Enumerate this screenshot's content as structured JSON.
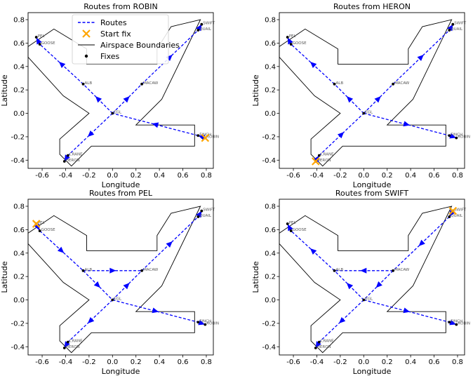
{
  "chart_data": {
    "type": "line",
    "xlabel": "Longitude",
    "ylabel": "Latitude",
    "xlim": [
      -0.72,
      0.86
    ],
    "ylim": [
      -0.47,
      0.86
    ],
    "x_ticks": [
      "-0.6",
      "-0.4",
      "-0.2",
      "0.0",
      "0.2",
      "0.4",
      "0.6",
      "0.8"
    ],
    "x_tick_values": [
      -0.6,
      -0.4,
      -0.2,
      0.0,
      0.2,
      0.4,
      0.6,
      0.8
    ],
    "y_ticks": [
      "-0.4",
      "-0.2",
      "0.0",
      "0.2",
      "0.4",
      "0.6",
      "0.8"
    ],
    "y_tick_values": [
      -0.4,
      -0.2,
      0.0,
      0.2,
      0.4,
      0.6,
      0.8
    ],
    "colors": {
      "route": "#0000ff",
      "start": "#ffa500",
      "boundary": "#000000",
      "fix": "#000000"
    },
    "legend": {
      "routes": "Routes",
      "start": "Start fix",
      "boundaries": "Airspace Boundaries",
      "fixes": "Fixes"
    },
    "fixes": [
      {
        "name": "PEL",
        "lon": -0.65,
        "lat": 0.65
      },
      {
        "name": "GOOSE",
        "lon": -0.62,
        "lat": 0.59
      },
      {
        "name": "SWIFT",
        "lon": 0.76,
        "lat": 0.76
      },
      {
        "name": "QUAIL",
        "lon": 0.73,
        "lat": 0.71
      },
      {
        "name": "ALB",
        "lon": -0.25,
        "lat": 0.25
      },
      {
        "name": "MACAW",
        "lon": 0.25,
        "lat": 0.25
      },
      {
        "name": "EGL",
        "lon": 0.0,
        "lat": 0.0
      },
      {
        "name": "FINCH",
        "lon": 0.73,
        "lat": -0.19
      },
      {
        "name": "ROBIN",
        "lon": 0.79,
        "lat": -0.21
      },
      {
        "name": "CRANE",
        "lon": -0.38,
        "lat": -0.36
      },
      {
        "name": "HERON",
        "lon": -0.41,
        "lat": -0.41
      }
    ],
    "boundary": [
      [
        -0.35,
        -0.45
      ],
      [
        -0.18,
        -0.28
      ],
      [
        -0.18,
        -0.28
      ],
      [
        0.18,
        -0.28
      ],
      [
        0.18,
        -0.28
      ],
      [
        0.7,
        -0.28
      ],
      [
        0.7,
        -0.28
      ],
      [
        0.7,
        -0.1
      ],
      [
        0.45,
        -0.1
      ],
      [
        0.2,
        -0.1
      ],
      [
        0.42,
        0.12
      ],
      [
        0.75,
        0.8
      ],
      [
        0.5,
        0.74
      ],
      [
        0.38,
        0.55
      ],
      [
        0.38,
        0.42
      ],
      [
        -0.22,
        0.42
      ],
      [
        -0.22,
        0.55
      ],
      [
        -0.5,
        0.72
      ],
      [
        -0.72,
        0.57
      ],
      [
        -0.72,
        0.48
      ],
      [
        -0.42,
        0.15
      ],
      [
        -0.2,
        0.0
      ],
      [
        -0.45,
        -0.22
      ],
      [
        -0.45,
        -0.35
      ]
    ],
    "panels": [
      {
        "title": "Routes from ROBIN",
        "start": "ROBIN",
        "show_legend": true,
        "routes": [
          [
            "ROBIN",
            "FINCH",
            "EGL",
            "CRANE",
            "HERON"
          ],
          [
            "ROBIN",
            "FINCH",
            "EGL",
            "ALB",
            "GOOSE",
            "PEL"
          ],
          [
            "ROBIN",
            "FINCH",
            "EGL",
            "MACAW",
            "QUAIL",
            "SWIFT"
          ]
        ]
      },
      {
        "title": "Routes from HERON",
        "start": "HERON",
        "show_legend": false,
        "routes": [
          [
            "HERON",
            "CRANE",
            "EGL",
            "FINCH",
            "ROBIN"
          ],
          [
            "HERON",
            "CRANE",
            "EGL",
            "ALB",
            "GOOSE",
            "PEL"
          ],
          [
            "HERON",
            "CRANE",
            "EGL",
            "MACAW",
            "QUAIL",
            "SWIFT"
          ]
        ]
      },
      {
        "title": "Routes from PEL",
        "start": "PEL",
        "show_legend": false,
        "routes": [
          [
            "PEL",
            "GOOSE",
            "ALB",
            "EGL",
            "CRANE",
            "HERON"
          ],
          [
            "PEL",
            "GOOSE",
            "ALB",
            "EGL",
            "FINCH",
            "ROBIN"
          ],
          [
            "PEL",
            "GOOSE",
            "ALB",
            "MACAW",
            "QUAIL",
            "SWIFT"
          ],
          [
            "PEL",
            "GOOSE",
            "ALB",
            "EGL",
            "MACAW",
            "QUAIL",
            "SWIFT"
          ]
        ]
      },
      {
        "title": "Routes from SWIFT",
        "start": "SWIFT",
        "show_legend": false,
        "routes": [
          [
            "SWIFT",
            "QUAIL",
            "MACAW",
            "ALB",
            "GOOSE",
            "PEL"
          ],
          [
            "SWIFT",
            "QUAIL",
            "MACAW",
            "EGL",
            "CRANE",
            "HERON"
          ],
          [
            "SWIFT",
            "QUAIL",
            "MACAW",
            "EGL",
            "FINCH",
            "ROBIN"
          ],
          [
            "SWIFT",
            "QUAIL",
            "MACAW",
            "EGL",
            "ALB",
            "GOOSE",
            "PEL"
          ]
        ]
      }
    ]
  }
}
